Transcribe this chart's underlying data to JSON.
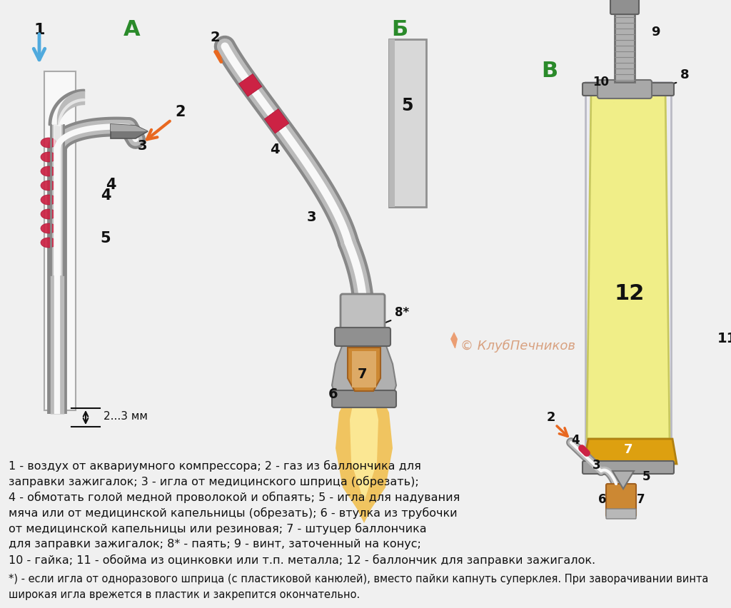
{
  "bg_color": "#f0f0f0",
  "title_color": "#2a8a2a",
  "label_color": "#111111",
  "arrow_orange": "#e86820",
  "arrow_blue": "#50aadd",
  "tube_gray": "#888888",
  "tube_light": "#bbbbbb",
  "tube_outline": "#555555",
  "coil_red": "#cc2244",
  "needle_gray": "#777777",
  "stub_orange": "#cc8833",
  "stub_light": "#ddaa66",
  "flame_outer": "#f0c050",
  "flame_inner": "#ffe090",
  "canister_yellow": "#f0ee88",
  "canister_edge": "#c8c860",
  "gold_cap": "#dda010",
  "metal_gray": "#a0a0a0",
  "dark_gray": "#555555",
  "white": "#f8f8f8",
  "light_gray": "#e0e0e0",
  "caption_lines": [
    "1 - воздух от аквариумного компрессора; 2 - газ из баллончика для",
    "заправки зажигалок; 3 - игла от медицинского шприца (обрезать);",
    "4 - обмотать голой медной проволокой и обпаять; 5 - игла для надувания",
    "мяча или от медицинской капельницы (обрезать); 6 - втулка из трубочки",
    "от медицинской капельницы или резиновая; 7 - штуцер баллончика",
    "для заправки зажигалок; 8* - паять; 9 - винт, заточенный на конус;",
    "10 - гайка; 11 - обойма из оцинковки или т.п. металла; 12 - баллончик для заправки зажигалок."
  ],
  "footnote_lines": [
    "*) - если игла от одноразового шприца (с пластиковой канюлей), вместо пайки капнуть суперклея. При заворачивании винта",
    "широкая игла врежется в пластик и закрепится окончательно."
  ]
}
